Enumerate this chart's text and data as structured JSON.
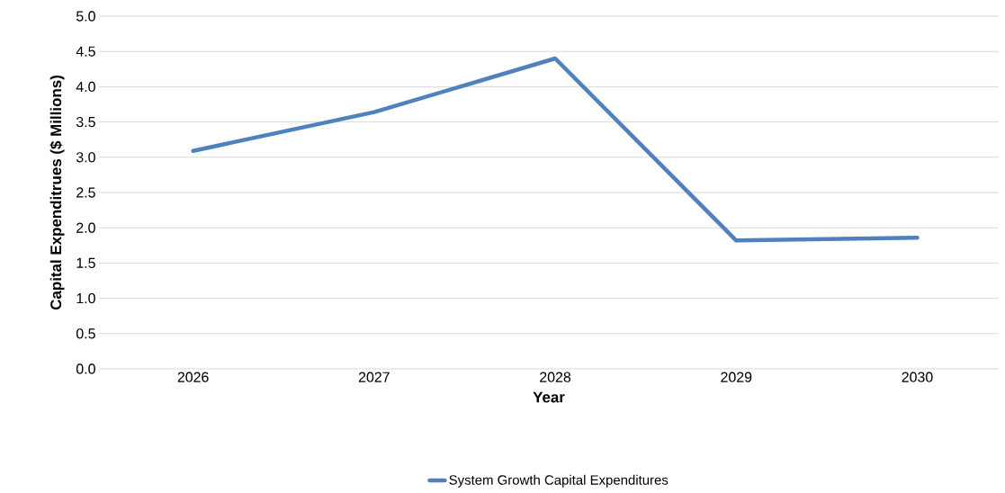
{
  "chart_data": {
    "type": "line",
    "xlabel": "Year",
    "ylabel": "Capital Expenditrues ($ Millions)",
    "categories": [
      "2026",
      "2027",
      "2028",
      "2029",
      "2030"
    ],
    "series": [
      {
        "name": "System Growth Capital Expenditures",
        "color": "#4f81bd",
        "values": [
          3.09,
          3.64,
          4.4,
          1.82,
          1.86
        ]
      }
    ],
    "ylim": [
      0,
      5
    ],
    "yticks": [
      {
        "value": 0,
        "label": "0.0"
      },
      {
        "value": 0.5,
        "label": "0.5"
      },
      {
        "value": 1,
        "label": "1.0"
      },
      {
        "value": 1.5,
        "label": "1.5"
      },
      {
        "value": 2,
        "label": "2.0"
      },
      {
        "value": 2.5,
        "label": "2.5"
      },
      {
        "value": 3,
        "label": "3.0"
      },
      {
        "value": 3.5,
        "label": "3.5"
      },
      {
        "value": 4,
        "label": "4.0"
      },
      {
        "value": 4.5,
        "label": "4.5"
      },
      {
        "value": 5,
        "label": "5.0"
      }
    ],
    "grid": "y",
    "legend": "bottom"
  }
}
